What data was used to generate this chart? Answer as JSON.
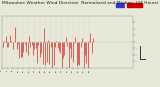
{
  "title": "Milwaukee Weather Wind Direction  Normalized and Median  (24 Hours) (New)",
  "title_fontsize": 3.2,
  "background_color": "#e8e8d8",
  "plot_bg_color": "#e8e8d8",
  "bar_color": "#cc0000",
  "median_color": "#0000cc",
  "ylim": [
    -1.0,
    1.0
  ],
  "num_points": 96,
  "data_points": 68,
  "seed": 42,
  "ytick_labels": [
    "-",
    ".",
    "-",
    ".",
    "-",
    ".",
    "-"
  ],
  "grid_color": "#aaaaaa",
  "scale_bar_height": 0.4,
  "legend_blue": "#3333cc",
  "legend_red": "#cc0000"
}
